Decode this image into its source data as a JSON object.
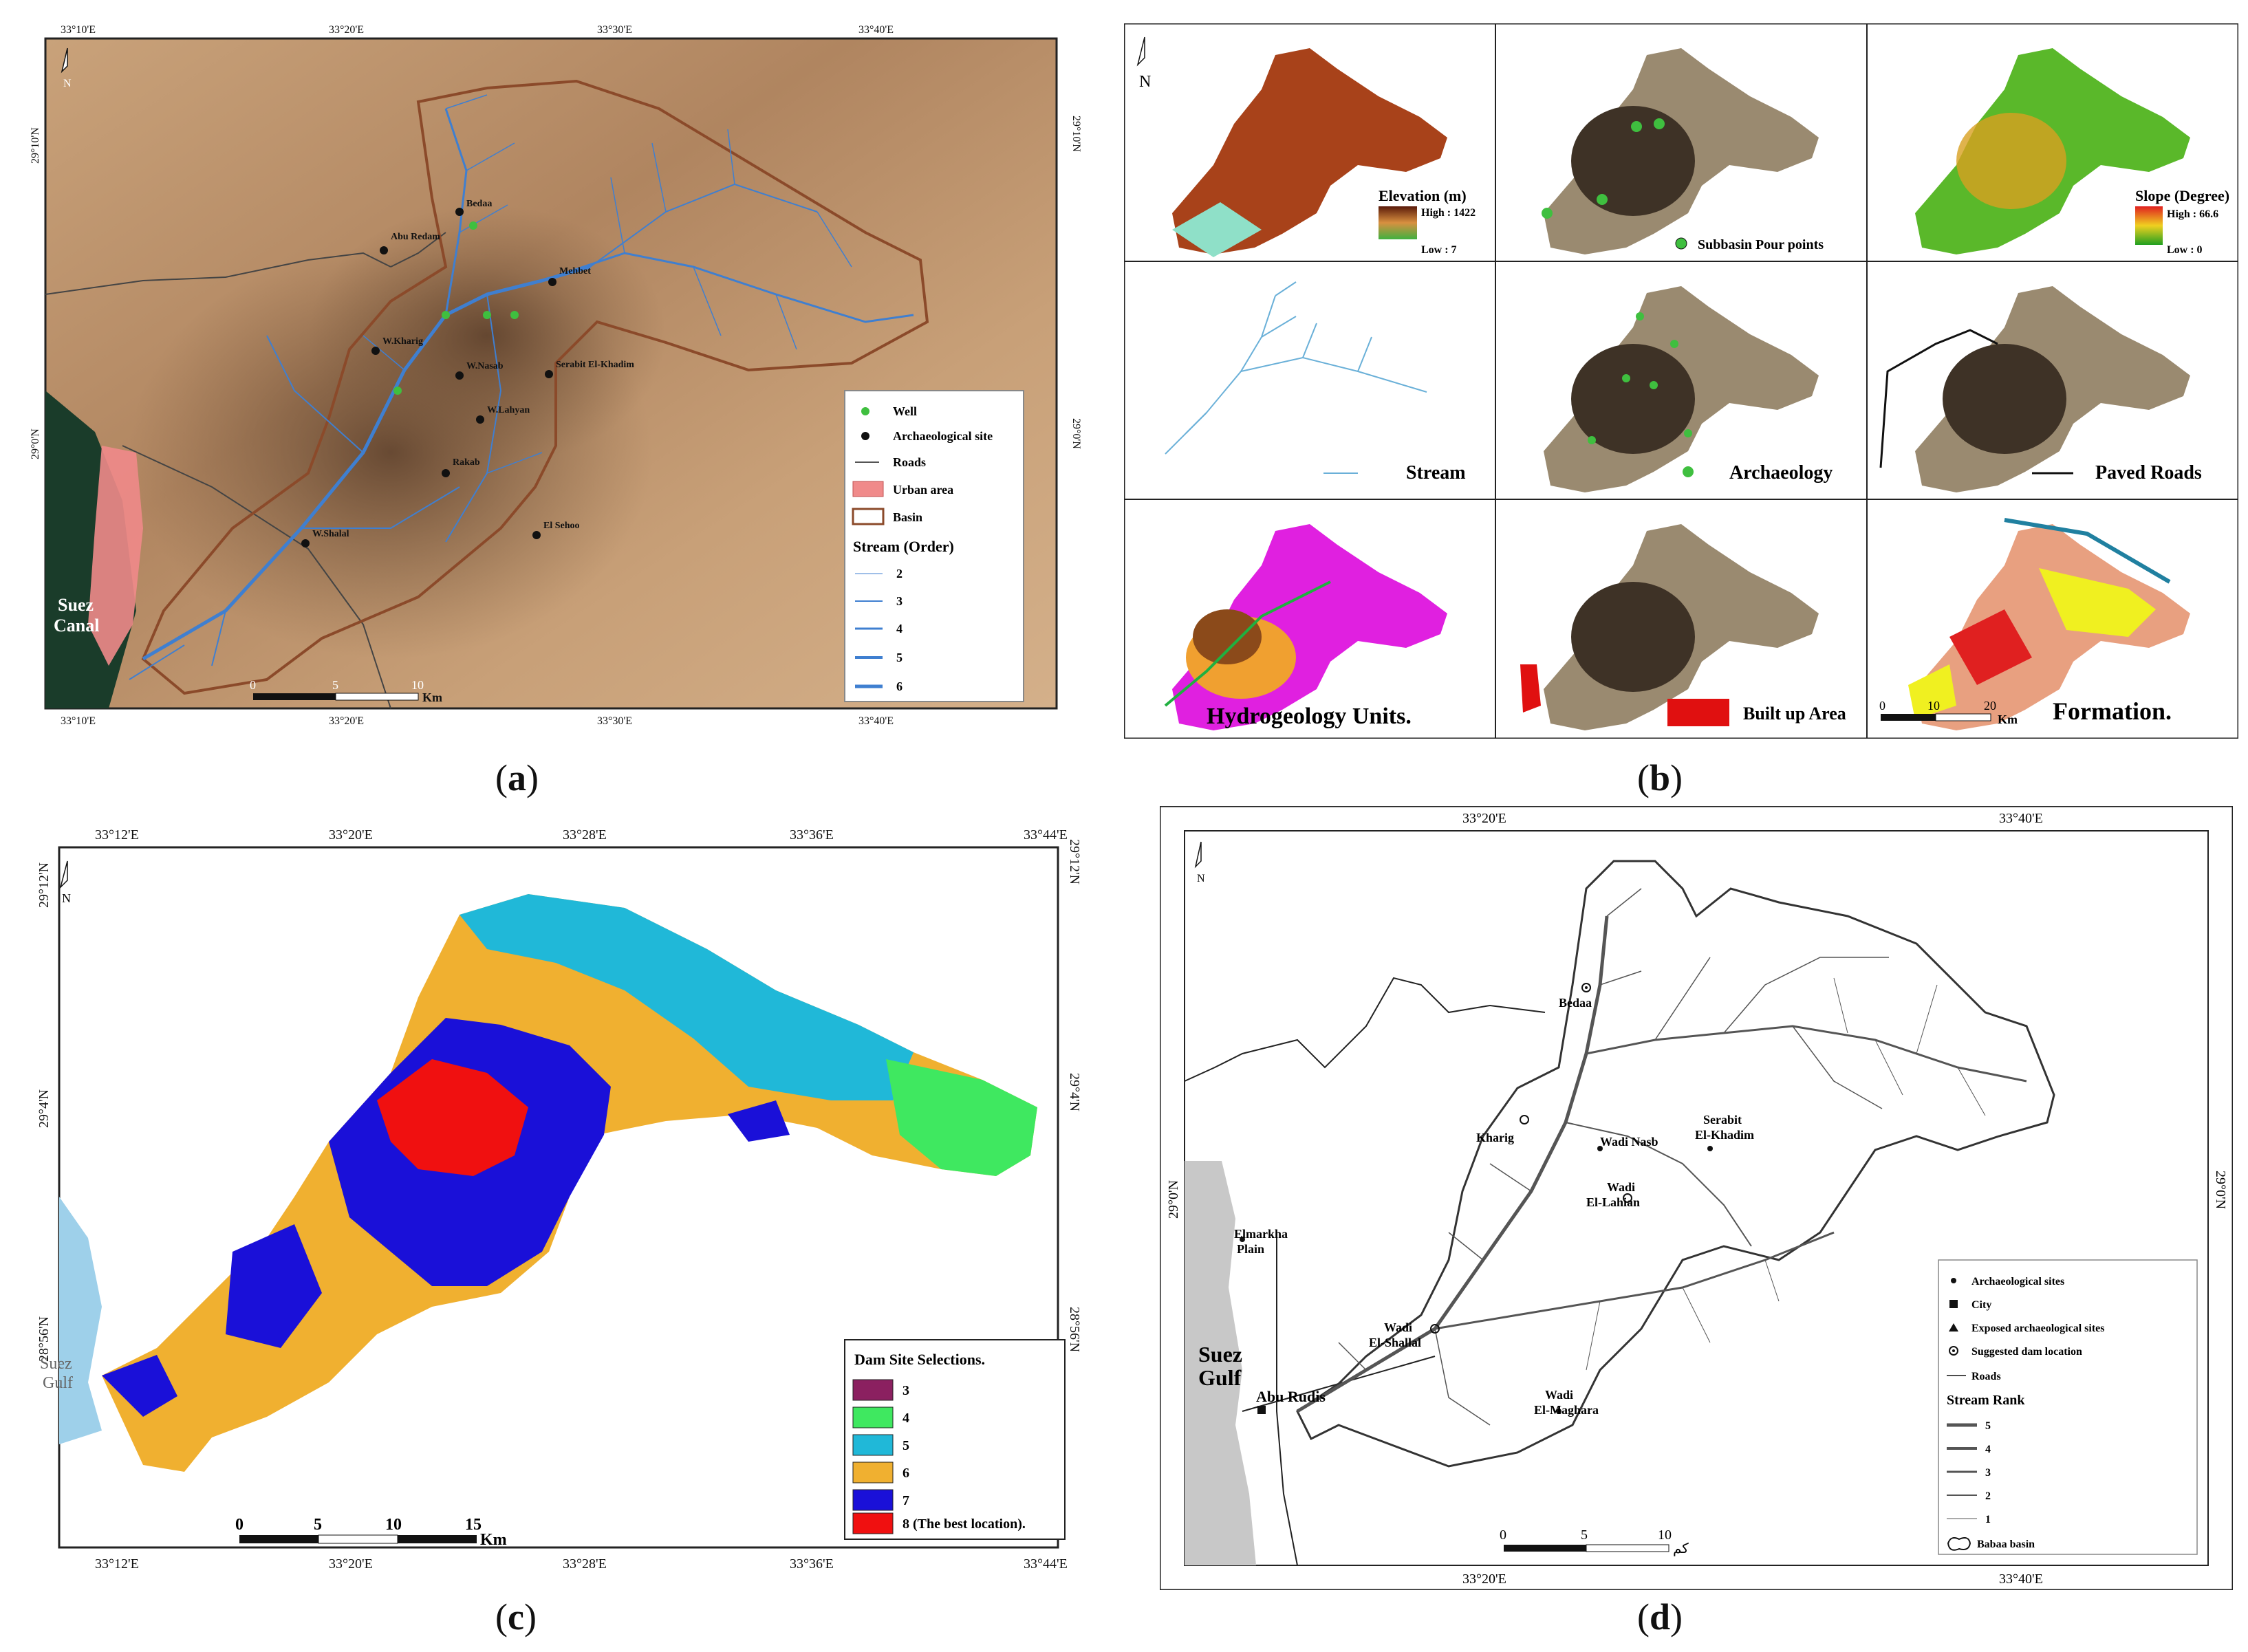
{
  "panel_a": {
    "caption": "a",
    "top_ticks": [
      "33°10'E",
      "33°20'E",
      "33°30'E",
      "33°40'E"
    ],
    "bottom_ticks": [
      "33°10'E",
      "33°20'E",
      "33°30'E",
      "33°40'E"
    ],
    "left_ticks": [
      "29°10'N",
      "29°0'N"
    ],
    "right_ticks": [
      "29°10'N",
      "29°0'N"
    ],
    "sea_label_line1": "Suez",
    "sea_label_line2": "Canal",
    "north": "N",
    "sites": [
      "Bedaa",
      "Abu Redam",
      "Mehbet",
      "W.Kharig",
      "W.Nasab",
      "Serabit El-Khadim",
      "W.Lahyan",
      "Rakab",
      "W.Shalal",
      "El Sehoo"
    ],
    "scale_labels": [
      "0",
      "5",
      "10"
    ],
    "scale_unit": "Km",
    "legend": {
      "well": "Well",
      "archaeological_site": "Archaeological site",
      "roads": "Roads",
      "urban_area": "Urban area",
      "basin": "Basin",
      "stream_title": "Stream (Order)",
      "stream_orders": [
        "2",
        "3",
        "4",
        "5",
        "6"
      ]
    },
    "colors": {
      "urban": "#f08a8a",
      "basin": "#8b4a2a",
      "stream": "#3f7fd0",
      "well": "#3fbf3f",
      "terrain": "#b89068"
    }
  },
  "panel_b": {
    "caption": "b",
    "north": "N",
    "cells": {
      "elevation_title": "Elevation (m)",
      "elevation_high": "High : 1422",
      "elevation_low": "Low : 7",
      "subbasin": "Subbasin Pour points",
      "slope_title": "Slope (Degree)",
      "slope_high": "High : 66.6",
      "slope_low": "Low : 0",
      "stream": "Stream",
      "archaeology": "Archaeology",
      "paved_roads": "Paved Roads",
      "hydrogeology": "Hydrogeology Units.",
      "built_up": "Built up Area",
      "formation": "Formation."
    },
    "scale_labels": [
      "0",
      "10",
      "20"
    ],
    "scale_unit": "Km"
  },
  "panel_c": {
    "caption": "c",
    "top_ticks": [
      "33°12'E",
      "33°20'E",
      "33°28'E",
      "33°36'E",
      "33°44'E"
    ],
    "bottom_ticks": [
      "33°12'E",
      "33°20'E",
      "33°28'E",
      "33°36'E",
      "33°44'E"
    ],
    "left_ticks": [
      "29°12'N",
      "29°4'N",
      "28°56'N"
    ],
    "right_ticks": [
      "29°12'N",
      "29°4'N",
      "28°56'N"
    ],
    "north": "N",
    "sea_label_line1": "Suez",
    "sea_label_line2": "Gulf",
    "legend_title": "Dam Site Selections.",
    "legend_items": [
      {
        "label": "3",
        "color": "#8b2060"
      },
      {
        "label": "4",
        "color": "#3fe860"
      },
      {
        "label": "5",
        "color": "#20b8d8"
      },
      {
        "label": "6",
        "color": "#f0b030"
      },
      {
        "label": "7",
        "color": "#1a10d8"
      },
      {
        "label": "8 (The best location).",
        "color": "#f01010"
      }
    ],
    "scale_labels": [
      "0",
      "5",
      "10",
      "15"
    ],
    "scale_unit": "Km"
  },
  "panel_d": {
    "caption": "d",
    "top_ticks": [
      "33°20'E",
      "33°40'E"
    ],
    "bottom_ticks": [
      "33°20'E",
      "33°40'E"
    ],
    "left_ticks": [
      "29°0'N"
    ],
    "right_ticks": [
      "29°0'N"
    ],
    "north": "N",
    "sea_label_line1": "Suez",
    "sea_label_line2": "Gulf",
    "places": {
      "bedaa": "Bedaa",
      "kharig": "Kharig",
      "wadi_nasb": "Wadi Nasb",
      "serabit_1": "Serabit",
      "serabit_2": "El-Khadim",
      "lahian_1": "Wadi",
      "lahian_2": "El-Lahian",
      "elmarkha_1": "Elmarkha",
      "elmarkha_2": "Plain",
      "shallal_1": "Wadi",
      "shallal_2": "El-Shallal",
      "abu_rudis": "Abu Rudis",
      "maghara_1": "Wadi",
      "maghara_2": "El-Maghara"
    },
    "legend": {
      "archaeological_sites": "Archaeological sites",
      "city": "City",
      "exposed": "Exposed archaeological sites",
      "suggested_dam": "Suggested dam location",
      "roads": "Roads",
      "stream_rank": "Stream Rank",
      "ranks": [
        "5",
        "4",
        "3",
        "2",
        "1"
      ],
      "basin": "Babaa basin"
    },
    "scale_labels": [
      "0",
      "5",
      "10"
    ],
    "scale_unit": "كم"
  }
}
